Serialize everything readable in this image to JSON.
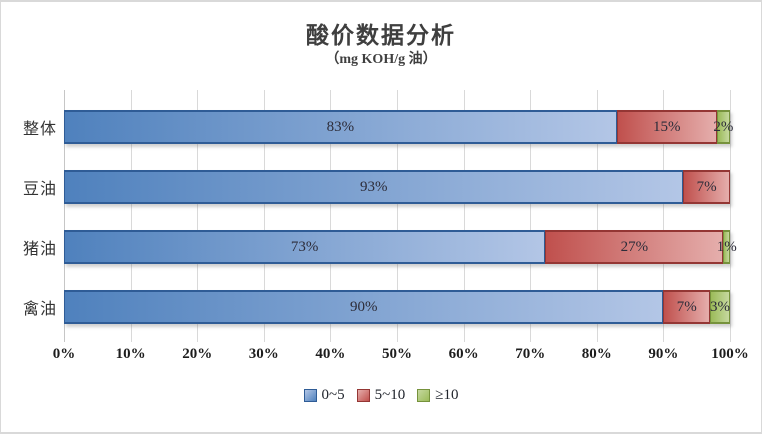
{
  "chart_data": {
    "type": "bar",
    "orientation": "horizontal",
    "stacked": true,
    "title": "酸价数据分析",
    "subtitle": "（mg KOH/g 油）",
    "categories": [
      "整体",
      "豆油",
      "猪油",
      "禽油"
    ],
    "series": [
      {
        "name": "0~5",
        "color": "#4F81BD",
        "color_light": "#B3C6E6",
        "border": "#2F5C96",
        "values": [
          83,
          93,
          73,
          90
        ]
      },
      {
        "name": "5~10",
        "color": "#C0504D",
        "color_light": "#E5AEAC",
        "border": "#943634",
        "values": [
          15,
          7,
          27,
          7
        ]
      },
      {
        "name": "≥10",
        "color": "#9BBB59",
        "color_light": "#C6D89F",
        "border": "#76923C",
        "values": [
          2,
          0,
          1,
          3
        ]
      }
    ],
    "data_labels": [
      [
        "83%",
        "15%",
        "2%"
      ],
      [
        "93%",
        "7%",
        ""
      ],
      [
        "73%",
        "27%",
        "1%"
      ],
      [
        "90%",
        "7%",
        "3%"
      ]
    ],
    "x_ticks": [
      "0%",
      "10%",
      "20%",
      "30%",
      "40%",
      "50%",
      "60%",
      "70%",
      "80%",
      "90%",
      "100%"
    ],
    "xlim": [
      0,
      100
    ],
    "grid": "vertical-gridlines",
    "gridline_color": "#D9D9D9",
    "legend_position": "bottom"
  }
}
